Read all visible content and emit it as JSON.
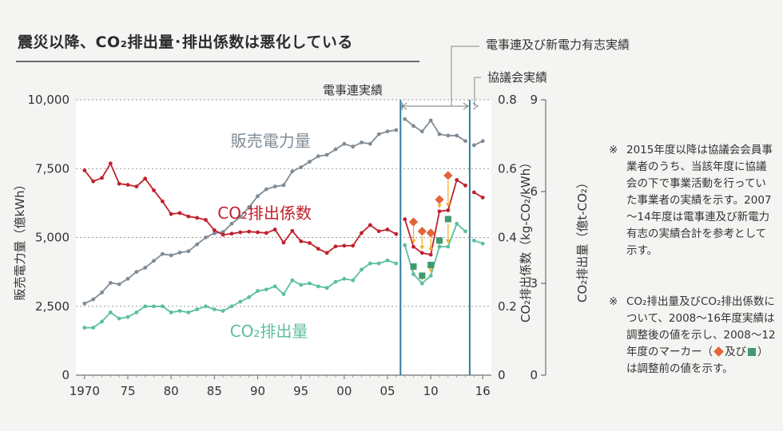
{
  "title": "震災以降、CO₂排出量･排出係数は悪化している",
  "legend_top": {
    "fepc_plus": "電事連及び新電力有志実績",
    "council": "協議会実績",
    "fepc": "電事連実績"
  },
  "notes": [
    {
      "mark": "※",
      "text": "2015年度以降は協議会会員事業者のうち、当該年度に協議会の下で事業活動を行っていた事業者の実績を示す。2007～14年度は電事連及び新電力有志の実績合計を参考として示す。"
    },
    {
      "mark": "※",
      "text_before": "CO₂排出量及びCO₂排出係数について、2008～16年度実績は調整後の値を示し、2008～12年度のマーカー（",
      "text_and": "及び",
      "text_after": "）は調整前の値を示す。"
    }
  ],
  "colors": {
    "sales": "#7f8b95",
    "coef": "#c0202c",
    "emission": "#5bbf9d",
    "marker_coef": "#e2643a",
    "marker_emission": "#3f9a6d",
    "arrow": "#f2b12e",
    "divider": "#2f7f9e"
  },
  "chart_data": {
    "type": "line",
    "title": "震災以降、CO₂排出量･排出係数は悪化している",
    "xlabel": "",
    "x_ticks": [
      {
        "x": 1970,
        "label": "1970"
      },
      {
        "x": 1975,
        "label": "75"
      },
      {
        "x": 1980,
        "label": "80"
      },
      {
        "x": 1985,
        "label": "85"
      },
      {
        "x": 1990,
        "label": "90"
      },
      {
        "x": 1995,
        "label": "95"
      },
      {
        "x": 2000,
        "label": "00"
      },
      {
        "x": 2005,
        "label": "05"
      },
      {
        "x": 2010,
        "label": "10"
      },
      {
        "x": 2016,
        "label": "16"
      }
    ],
    "xlim": [
      1969,
      2017
    ],
    "axes": {
      "left": {
        "label": "販売電力量（億kWh）",
        "ylim": [
          0,
          10000
        ],
        "ticks": [
          "0",
          "2,500",
          "5,000",
          "7,500",
          "10,000"
        ],
        "tick_values": [
          0,
          2500,
          5000,
          7500,
          10000
        ]
      },
      "right1": {
        "label": "CO₂排出係数（kg-CO₂/kWh）",
        "ylim": [
          0,
          0.8
        ],
        "ticks": [
          "0",
          "0.2",
          "0.4",
          "0.6",
          "0.8"
        ],
        "tick_values": [
          0,
          0.2,
          0.4,
          0.6,
          0.8
        ]
      },
      "right2": {
        "label": "CO₂排出量（億t-CO₂）",
        "ylim": [
          0,
          9
        ],
        "ticks": [
          "0",
          "3",
          "6",
          "9"
        ],
        "tick_values": [
          0,
          3,
          6,
          9
        ]
      }
    },
    "grid": true,
    "dividers": [
      2006.5,
      2014.5
    ],
    "series": [
      {
        "name": "販売電力量",
        "axis": "left",
        "color_key": "sales",
        "label_pos": [
          1991.5,
          8300
        ],
        "segments": [
          {
            "x": [
              1970,
              1971,
              1972,
              1973,
              1974,
              1975,
              1976,
              1977,
              1978,
              1979,
              1980,
              1981,
              1982,
              1983,
              1984,
              1985,
              1986,
              1987,
              1988,
              1989,
              1990,
              1991,
              1992,
              1993,
              1994,
              1995,
              1996,
              1997,
              1998,
              1999,
              2000,
              2001,
              2002,
              2003,
              2004,
              2005,
              2006
            ],
            "y": [
              2600,
              2750,
              3000,
              3350,
              3300,
              3500,
              3750,
              3900,
              4150,
              4400,
              4350,
              4450,
              4500,
              4750,
              5000,
              5150,
              5200,
              5500,
              5750,
              6100,
              6500,
              6750,
              6850,
              6900,
              7400,
              7550,
              7750,
              7950,
              8000,
              8200,
              8400,
              8300,
              8450,
              8400,
              8750,
              8850,
              8900
            ]
          },
          {
            "x": [
              2007,
              2008,
              2009,
              2010,
              2011,
              2012,
              2013,
              2014
            ],
            "y": [
              9300,
              9050,
              8850,
              9250,
              8750,
              8700,
              8700,
              8500
            ]
          },
          {
            "x": [
              2015,
              2016
            ],
            "y": [
              8350,
              8500
            ]
          }
        ]
      },
      {
        "name": "CO₂排出係数",
        "axis": "right1",
        "color_key": "coef",
        "label_pos": [
          1990.8,
          0.455
        ],
        "segments": [
          {
            "x": [
              1970,
              1971,
              1972,
              1973,
              1974,
              1975,
              1976,
              1977,
              1978,
              1979,
              1980,
              1981,
              1982,
              1983,
              1984,
              1985,
              1986,
              1987,
              1988,
              1989,
              1990,
              1991,
              1992,
              1993,
              1994,
              1995,
              1996,
              1997,
              1998,
              1999,
              2000,
              2001,
              2002,
              2003,
              2004,
              2005,
              2006
            ],
            "y": [
              0.595,
              0.563,
              0.573,
              0.615,
              0.556,
              0.553,
              0.548,
              0.571,
              0.537,
              0.505,
              0.468,
              0.471,
              0.461,
              0.457,
              0.451,
              0.421,
              0.408,
              0.411,
              0.415,
              0.417,
              0.415,
              0.413,
              0.423,
              0.385,
              0.419,
              0.389,
              0.384,
              0.367,
              0.355,
              0.374,
              0.376,
              0.376,
              0.413,
              0.436,
              0.418,
              0.423,
              0.41
            ]
          },
          {
            "x": [
              2007,
              2008,
              2009,
              2010,
              2011,
              2012,
              2013,
              2014
            ],
            "y": [
              0.453,
              0.373,
              0.355,
              0.35,
              0.476,
              0.479,
              0.567,
              0.551
            ]
          },
          {
            "x": [
              2015,
              2016
            ],
            "y": [
              0.531,
              0.516
            ]
          }
        ]
      },
      {
        "name": "CO₂排出量",
        "axis": "right2",
        "color_key": "emission",
        "label_pos": [
          1991.3,
          1.25
        ],
        "segments": [
          {
            "x": [
              1970,
              1971,
              1972,
              1973,
              1974,
              1975,
              1976,
              1977,
              1978,
              1979,
              1980,
              1981,
              1982,
              1983,
              1984,
              1985,
              1986,
              1987,
              1988,
              1989,
              1990,
              1991,
              1992,
              1993,
              1994,
              1995,
              1996,
              1997,
              1998,
              1999,
              2000,
              2001,
              2002,
              2003,
              2004,
              2005,
              2006
            ],
            "y": [
              1.55,
              1.55,
              1.75,
              2.05,
              1.85,
              1.9,
              2.05,
              2.25,
              2.25,
              2.25,
              2.05,
              2.1,
              2.05,
              2.15,
              2.25,
              2.15,
              2.1,
              2.25,
              2.4,
              2.55,
              2.75,
              2.8,
              2.9,
              2.65,
              3.1,
              2.95,
              3.0,
              2.9,
              2.85,
              3.05,
              3.15,
              3.1,
              3.45,
              3.65,
              3.65,
              3.75,
              3.65
            ]
          },
          {
            "x": [
              2007,
              2008,
              2009,
              2010,
              2011,
              2012,
              2013,
              2014
            ],
            "y": [
              4.25,
              3.3,
              3.0,
              3.25,
              4.2,
              4.2,
              4.95,
              4.7
            ]
          },
          {
            "x": [
              2015,
              2016
            ],
            "y": [
              4.4,
              4.3
            ]
          }
        ]
      }
    ],
    "pre_adjustment_markers": {
      "coef": {
        "x": [
          2008,
          2009,
          2010,
          2011,
          2012
        ],
        "y": [
          0.445,
          0.418,
          0.413,
          0.51,
          0.58
        ]
      },
      "emission": {
        "x": [
          2008,
          2009,
          2010,
          2011,
          2012
        ],
        "y": [
          3.55,
          3.25,
          3.6,
          4.4,
          5.1
        ]
      }
    }
  }
}
